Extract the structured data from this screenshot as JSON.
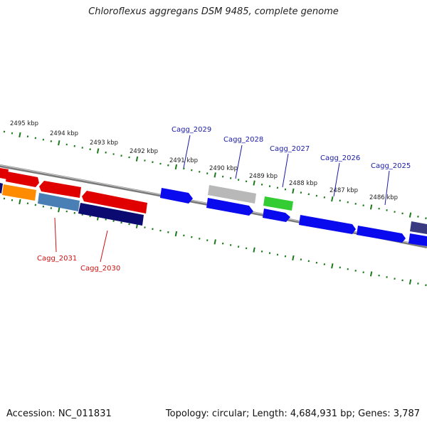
{
  "title": "Chloroflexus aggregans DSM 9485, complete genome",
  "footer": {
    "accession": "Accession: NC_011831",
    "summary": "Topology: circular; Length: 4,684,931 bp; Genes: 3,787"
  },
  "scale_labels": [
    "2495 kbp",
    "2494 kbp",
    "2493 kbp",
    "2492 kbp",
    "2491 kbp",
    "2490 kbp",
    "2489 kbp",
    "2488 kbp",
    "2487 kbp",
    "2486 kbp"
  ],
  "gene_labels": [
    {
      "name": "Cagg_2029",
      "color": "#1a1aa6"
    },
    {
      "name": "Cagg_2028",
      "color": "#1a1aa6"
    },
    {
      "name": "Cagg_2027",
      "color": "#1a1aa6"
    },
    {
      "name": "Cagg_2026",
      "color": "#1a1aa6"
    },
    {
      "name": "Cagg_2025",
      "color": "#1a1aa6"
    },
    {
      "name": "Cagg_2031",
      "color": "#cc1111"
    },
    {
      "name": "Cagg_2030",
      "color": "#cc1111"
    }
  ],
  "colors": {
    "backbone": "#888888",
    "ticks": "#1a7a1a",
    "red": "#e00000",
    "blue": "#0a0aee",
    "navy": "#0a0a70",
    "orange": "#ff8c00",
    "steelblue": "#4a7fb5",
    "gray": "#b8b8b8",
    "green": "#33cc33",
    "purple": "#3a3a80"
  }
}
